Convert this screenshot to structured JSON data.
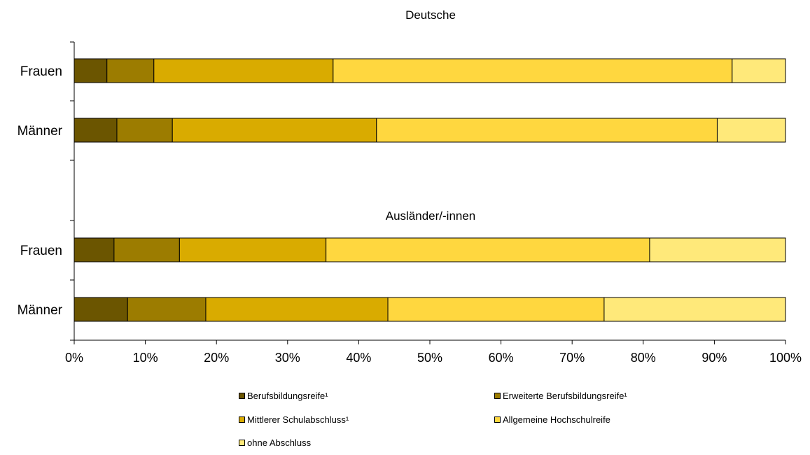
{
  "chart_data": {
    "type": "bar",
    "orientation": "horizontal",
    "stacked": true,
    "percent_stacked": true,
    "xlim": [
      0,
      100
    ],
    "x_ticks": [
      "0%",
      "10%",
      "20%",
      "30%",
      "40%",
      "50%",
      "60%",
      "70%",
      "80%",
      "90%",
      "100%"
    ],
    "groups": [
      {
        "title": "Deutsche",
        "categories": [
          "Frauen",
          "Männer"
        ]
      },
      {
        "title": "Ausländer/-innen",
        "categories": [
          "Frauen",
          "Männer"
        ]
      }
    ],
    "series": [
      {
        "name": "Berufsbildungsreife¹",
        "color": "#6b5500",
        "values": [
          4.6,
          6.0,
          5.6,
          7.5
        ]
      },
      {
        "name": "Erweiterte Berufsbildungsreife¹",
        "color": "#9c7c00",
        "values": [
          6.6,
          7.8,
          9.2,
          11.0
        ]
      },
      {
        "name": "Mittlerer Schulabschluss¹",
        "color": "#d9ab00",
        "values": [
          25.2,
          28.7,
          20.6,
          25.6
        ]
      },
      {
        "name": "Allgemeine Hochschulreife",
        "color": "#ffd73f",
        "values": [
          56.1,
          47.9,
          45.5,
          30.4
        ]
      },
      {
        "name": "ohne Abschluss",
        "color": "#ffe97a",
        "values": [
          7.5,
          9.6,
          19.1,
          25.5
        ]
      }
    ],
    "legend_position": "bottom",
    "grid": false
  }
}
